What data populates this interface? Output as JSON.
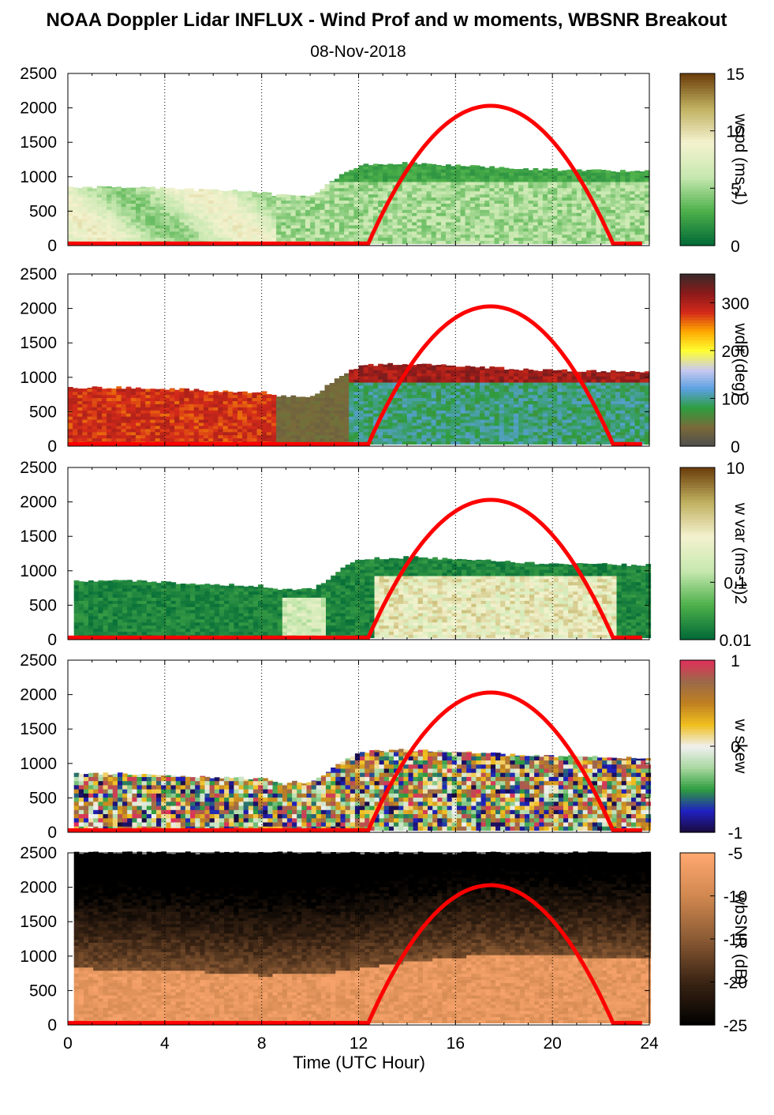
{
  "title": "NOAA Doppler Lidar INFLUX - Wind Prof and w moments, WBSNR Breakout",
  "subtitle": "08-Nov-2018",
  "xlabel": "Time (UTC Hour)",
  "x_ticks": [
    "0",
    "4",
    "8",
    "12",
    "16",
    "20",
    "24"
  ],
  "y_ticks": [
    "0",
    "500",
    "1000",
    "1500",
    "2000",
    "2500"
  ],
  "chart_data": [
    {
      "type": "heatmap",
      "name": "wspd",
      "colorbar_label": "wspd (ms-1)",
      "colorbar_ticks": [
        "0",
        "5",
        "10",
        "15"
      ],
      "clim": [
        0,
        15
      ],
      "xlim": [
        0,
        24
      ],
      "ylim": [
        0,
        2500
      ],
      "layer_tops_m": [
        [
          0,
          850
        ],
        [
          3,
          850
        ],
        [
          6,
          800
        ],
        [
          8,
          780
        ],
        [
          8.5,
          730
        ],
        [
          10,
          730
        ],
        [
          11.4,
          1070
        ],
        [
          12,
          1170
        ],
        [
          14,
          1200
        ],
        [
          17,
          1150
        ],
        [
          19,
          1110
        ],
        [
          21,
          1100
        ],
        [
          23.8,
          1080
        ]
      ],
      "overlay": "solar elevation curve (red), peak ~2000 m at ~17.5 UTC",
      "colormap": [
        "#006837",
        "#4db04a",
        "#c7e8b0",
        "#f4f2cf",
        "#c0b060",
        "#6b3d0a"
      ]
    },
    {
      "type": "heatmap",
      "name": "wdir",
      "colorbar_label": "wdir (deg)",
      "colorbar_ticks": [
        "0",
        "100",
        "200",
        "300"
      ],
      "clim": [
        0,
        360
      ],
      "xlim": [
        0,
        24
      ],
      "ylim": [
        0,
        2500
      ],
      "colormap": [
        "#4d4d4d",
        "#7a6a3a",
        "#2e9d3e",
        "#5aa0e0",
        "#c9c9f0",
        "#ffff33",
        "#ffaa00",
        "#d42a1a",
        "#8b1a1a",
        "#3a2a2a"
      ]
    },
    {
      "type": "heatmap",
      "name": "w var",
      "colorbar_label": "w var (ms-1)2",
      "colorbar_ticks": [
        "0.01",
        "0.1",
        "10"
      ],
      "clim": [
        0.01,
        10
      ],
      "scale": "log",
      "xlim": [
        0,
        24
      ],
      "ylim": [
        0,
        2500
      ],
      "colormap": [
        "#006837",
        "#4db04a",
        "#c7e8b0",
        "#f4f2cf",
        "#c0b060",
        "#6b3d0a"
      ]
    },
    {
      "type": "heatmap",
      "name": "w skew",
      "colorbar_label": "w skew",
      "colorbar_ticks": [
        "-1",
        "0",
        "1"
      ],
      "clim": [
        -1,
        1
      ],
      "xlim": [
        0,
        24
      ],
      "ylim": [
        0,
        2500
      ],
      "colormap": [
        "#1a0a3a",
        "#2020c0",
        "#2e9d3e",
        "#a8d8a0",
        "#f0f0f0",
        "#f0c020",
        "#c08020",
        "#9b6a4a",
        "#e0305a"
      ]
    },
    {
      "type": "heatmap",
      "name": "wbSNR",
      "colorbar_label": "wbSNR (dB)",
      "colorbar_ticks": [
        "-25",
        "-20",
        "-15",
        "-10",
        "-5"
      ],
      "clim": [
        -25,
        -5
      ],
      "xlim": [
        0,
        24
      ],
      "ylim": [
        0,
        2500
      ],
      "colormap": [
        "#000000",
        "#3a2414",
        "#8a5a34",
        "#d08850",
        "#ffa870"
      ]
    }
  ],
  "colors": {
    "sun_curve": "#ff0000",
    "background": "#ffffff"
  }
}
